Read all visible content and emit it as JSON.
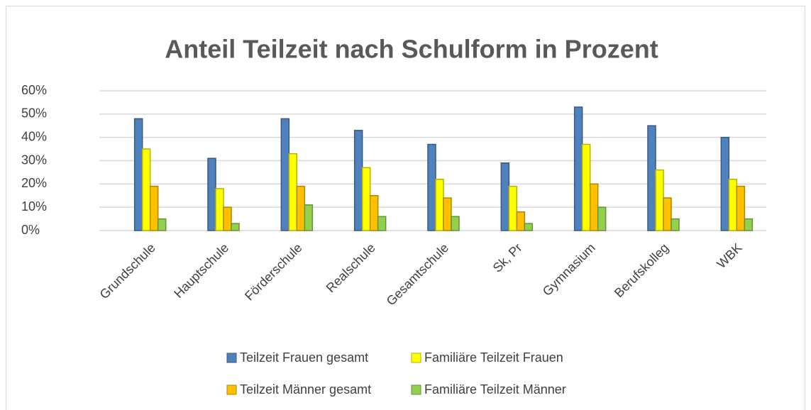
{
  "chart_data": {
    "type": "bar",
    "title": "Anteil Teilzeit nach Schulform in Prozent",
    "categories": [
      "Grundschule",
      "Hauptschule",
      "Förderschule",
      "Realschule",
      "Gesamtschule",
      "Sk, Pr",
      "Gymnasium",
      "Berufskolleg",
      "WBK"
    ],
    "series": [
      {
        "name": "Teilzeit Frauen gesamt",
        "color": "#4f81bd",
        "values": [
          48,
          31,
          48,
          43,
          37,
          29,
          53,
          45,
          40
        ]
      },
      {
        "name": "Familiäre Teilzeit Frauen",
        "color": "#ffff00",
        "values": [
          35,
          18,
          33,
          27,
          22,
          19,
          37,
          26,
          22
        ]
      },
      {
        "name": "Teilzeit Männer gesamt",
        "color": "#ffc000",
        "values": [
          19,
          10,
          19,
          15,
          14,
          8,
          20,
          14,
          19
        ]
      },
      {
        "name": "Familiäre Teilzeit Männer",
        "color": "#92d050",
        "values": [
          5,
          3,
          11,
          6,
          6,
          3,
          10,
          5,
          5
        ]
      }
    ],
    "ylim": [
      0,
      60
    ],
    "yticks": [
      {
        "value": 0,
        "label": "0%"
      },
      {
        "value": 10,
        "label": "10%"
      },
      {
        "value": 20,
        "label": "20%"
      },
      {
        "value": 30,
        "label": "30%"
      },
      {
        "value": 40,
        "label": "40%"
      },
      {
        "value": 50,
        "label": "50%"
      },
      {
        "value": 60,
        "label": "60%"
      }
    ],
    "grid": true
  }
}
